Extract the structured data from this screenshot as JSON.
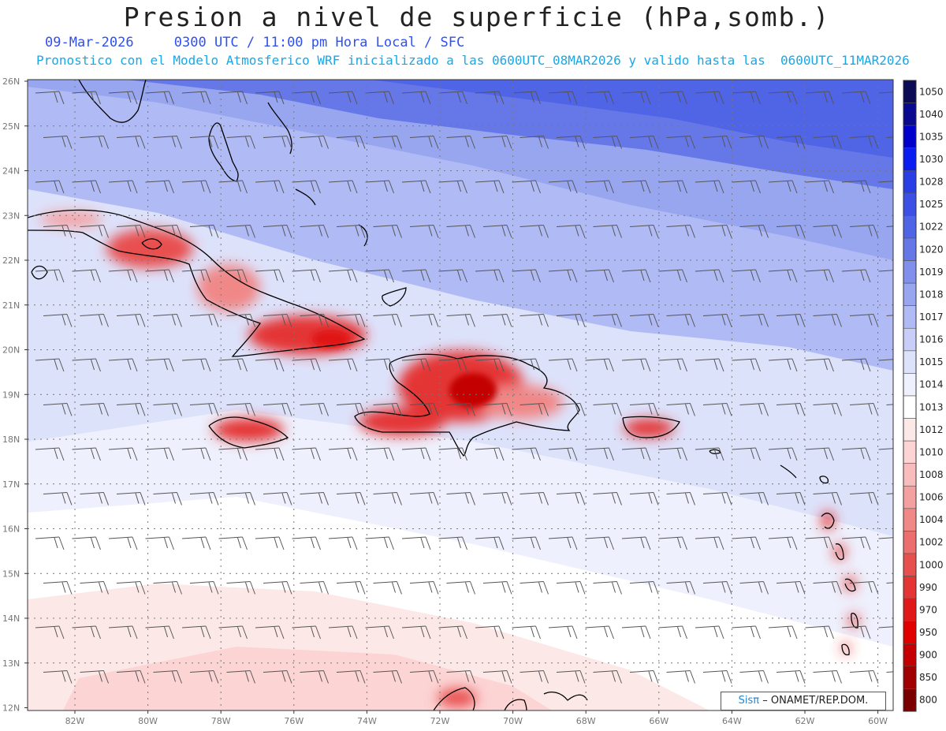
{
  "title": "Presion a nivel de superficie (hPa,somb.)",
  "subtitle_date": "09-Mar-2026",
  "subtitle_time": "0300 UTC / 11:00 pm Hora Local / SFC",
  "subtitle_model": "Pronostico con el Modelo Atmosferico WRF inicializado a las 0600UTC_08MAR2026 y valido hasta las  0600UTC_11MAR2026",
  "credit_brand": "Sisπ",
  "credit_text": "– ONAMET/REP.DOM.",
  "lat_labels": [
    "26N",
    "25N",
    "24N",
    "23N",
    "22N",
    "21N",
    "20N",
    "19N",
    "18N",
    "17N",
    "16N",
    "15N",
    "14N",
    "13N",
    "12N"
  ],
  "lon_labels": [
    "82W",
    "80W",
    "78W",
    "76W",
    "74W",
    "72W",
    "70W",
    "68W",
    "66W",
    "64W",
    "62W",
    "60W"
  ],
  "colorbar": {
    "levels": [
      "1050",
      "1040",
      "1035",
      "1030",
      "1028",
      "1025",
      "1022",
      "1020",
      "1019",
      "1018",
      "1017",
      "1016",
      "1015",
      "1014",
      "1013",
      "1012",
      "1010",
      "1008",
      "1006",
      "1004",
      "1002",
      "1000",
      "990",
      "970",
      "950",
      "900",
      "850",
      "800"
    ],
    "colors": [
      "#0a0a55",
      "#0a0a90",
      "#0000cc",
      "#0a1ef2",
      "#2a3ee6",
      "#3c50e6",
      "#5064e6",
      "#6678e8",
      "#8090ec",
      "#98a6f0",
      "#b0baf4",
      "#c8cef8",
      "#dde2fb",
      "#eef0fd",
      "#ffffff",
      "#fde8e8",
      "#fcd4d4",
      "#f8bcbc",
      "#f4a0a0",
      "#f08888",
      "#ec6e6e",
      "#e85050",
      "#e43434",
      "#e01818",
      "#e00000",
      "#c40000",
      "#a00000",
      "#7a0000"
    ]
  }
}
